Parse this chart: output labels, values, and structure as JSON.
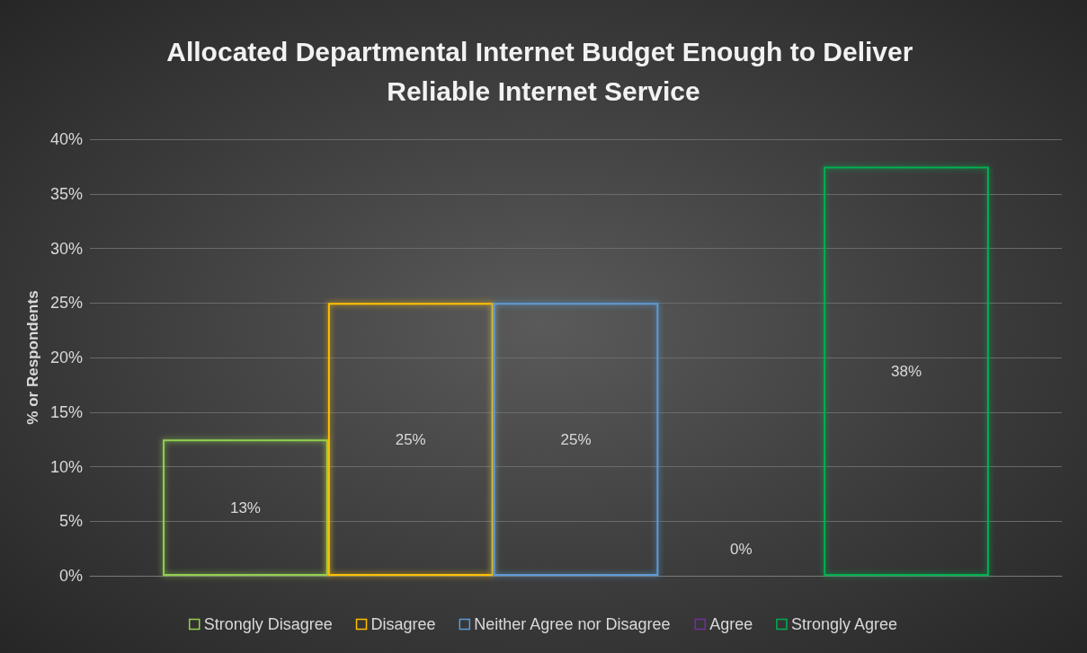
{
  "chart_data": {
    "type": "bar",
    "title": "Allocated Departmental Internet Budget Enough to Deliver Reliable Internet Service",
    "ylabel": "% or Respondents",
    "categories": [
      null
    ],
    "series": [
      {
        "name": "Strongly Disagree",
        "color": "#92d050",
        "values": [
          12.5
        ],
        "value_labels": [
          "13%"
        ]
      },
      {
        "name": "Disagree",
        "color": "#ffc000",
        "values": [
          25
        ],
        "value_labels": [
          "25%"
        ]
      },
      {
        "name": "Neither Agree nor Disagree",
        "color": "#5b9bd5",
        "values": [
          25
        ],
        "value_labels": [
          "25%"
        ]
      },
      {
        "name": "Agree",
        "color": "#7030a0",
        "values": [
          0
        ],
        "value_labels": [
          "0%"
        ]
      },
      {
        "name": "Strongly Agree",
        "color": "#00b050",
        "values": [
          37.5
        ],
        "value_labels": [
          "38%"
        ]
      }
    ],
    "ylim": [
      0,
      40
    ],
    "yticks": [
      {
        "value": 0,
        "label": "0%"
      },
      {
        "value": 5,
        "label": "5%"
      },
      {
        "value": 10,
        "label": "10%"
      },
      {
        "value": 15,
        "label": "15%"
      },
      {
        "value": 20,
        "label": "20%"
      },
      {
        "value": 25,
        "label": "25%"
      },
      {
        "value": 30,
        "label": "30%"
      },
      {
        "value": 35,
        "label": "35%"
      },
      {
        "value": 40,
        "label": "40%"
      }
    ],
    "grid": "y",
    "legend": "bottom"
  }
}
